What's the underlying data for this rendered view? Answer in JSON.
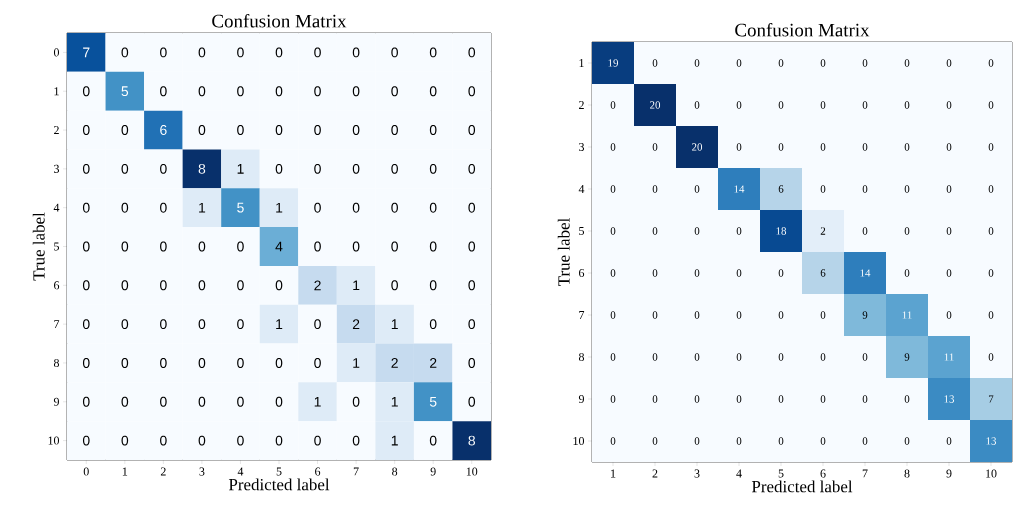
{
  "chart_data": [
    {
      "type": "heatmap",
      "title": "Confusion Matrix",
      "xlabel": "Predicted label",
      "ylabel": "True label",
      "categories": [
        "0",
        "1",
        "2",
        "3",
        "4",
        "5",
        "6",
        "7",
        "8",
        "9",
        "10"
      ],
      "y_categories": [
        "0",
        "1",
        "2",
        "3",
        "4",
        "5",
        "6",
        "7",
        "8",
        "9",
        "10"
      ],
      "cells": [
        [
          7,
          0,
          0,
          0,
          0,
          0,
          0,
          0,
          0,
          0,
          0
        ],
        [
          0,
          5,
          0,
          0,
          0,
          0,
          0,
          0,
          0,
          0,
          0
        ],
        [
          0,
          0,
          6,
          0,
          0,
          0,
          0,
          0,
          0,
          0,
          0
        ],
        [
          0,
          0,
          0,
          8,
          1,
          0,
          0,
          0,
          0,
          0,
          0
        ],
        [
          0,
          0,
          0,
          1,
          5,
          1,
          0,
          0,
          0,
          0,
          0
        ],
        [
          0,
          0,
          0,
          0,
          0,
          4,
          0,
          0,
          0,
          0,
          0
        ],
        [
          0,
          0,
          0,
          0,
          0,
          0,
          2,
          1,
          0,
          0,
          0
        ],
        [
          0,
          0,
          0,
          0,
          0,
          1,
          0,
          2,
          1,
          0,
          0
        ],
        [
          0,
          0,
          0,
          0,
          0,
          0,
          0,
          1,
          2,
          2,
          0
        ],
        [
          0,
          0,
          0,
          0,
          0,
          0,
          1,
          0,
          1,
          5,
          0
        ],
        [
          0,
          0,
          0,
          0,
          0,
          0,
          0,
          0,
          1,
          0,
          8
        ]
      ],
      "data_labels": true
    },
    {
      "type": "heatmap",
      "title": "Confusion Matrix",
      "xlabel": "Predicted label",
      "ylabel": "True label",
      "categories": [
        "1",
        "2",
        "3",
        "4",
        "5",
        "6",
        "7",
        "8",
        "9",
        "10"
      ],
      "y_categories": [
        "1",
        "2",
        "3",
        "4",
        "5",
        "6",
        "7",
        "8",
        "9",
        "10"
      ],
      "cells": [
        [
          19,
          0,
          0,
          0,
          0,
          0,
          0,
          0,
          0,
          0
        ],
        [
          0,
          20,
          0,
          0,
          0,
          0,
          0,
          0,
          0,
          0
        ],
        [
          0,
          0,
          20,
          0,
          0,
          0,
          0,
          0,
          0,
          0
        ],
        [
          0,
          0,
          0,
          14,
          6,
          0,
          0,
          0,
          0,
          0
        ],
        [
          0,
          0,
          0,
          0,
          18,
          2,
          0,
          0,
          0,
          0
        ],
        [
          0,
          0,
          0,
          0,
          0,
          6,
          14,
          0,
          0,
          0
        ],
        [
          0,
          0,
          0,
          0,
          0,
          0,
          9,
          11,
          0,
          0
        ],
        [
          0,
          0,
          0,
          0,
          0,
          0,
          0,
          9,
          11,
          0
        ],
        [
          0,
          0,
          0,
          0,
          0,
          0,
          0,
          0,
          13,
          7
        ],
        [
          0,
          0,
          0,
          0,
          0,
          0,
          0,
          0,
          0,
          13
        ]
      ],
      "data_labels": true
    }
  ]
}
